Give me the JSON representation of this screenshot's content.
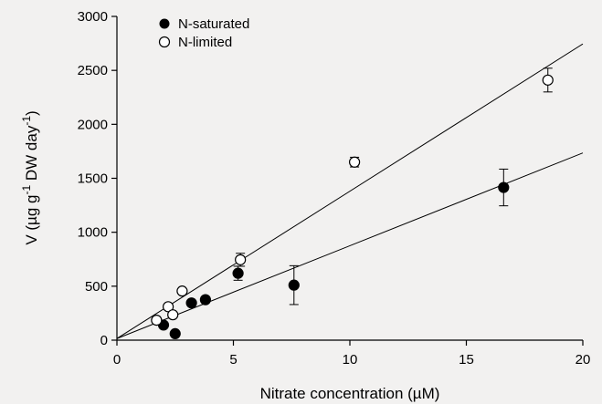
{
  "chart_data": {
    "type": "scatter",
    "xlabel": "Nitrate concentration (µM)",
    "ylabel": {
      "prefix": "V (µg g",
      "exp1": "-1",
      "mid": " DW day",
      "exp2": "-1",
      "suffix": ")"
    },
    "xlim": [
      0,
      20
    ],
    "ylim": [
      0,
      3000
    ],
    "x_ticks": [
      0,
      5,
      10,
      15,
      20
    ],
    "y_ticks": [
      0,
      500,
      1000,
      1500,
      2000,
      2500,
      3000
    ],
    "x_tick_labels": [
      "0",
      "5",
      "10",
      "15",
      "20"
    ],
    "y_tick_labels": [
      "0",
      "500",
      "1000",
      "1500",
      "2000",
      "2500",
      "3000"
    ],
    "grid": false,
    "legend_position": "top-left",
    "series": [
      {
        "name": "N-saturated",
        "marker": "filled-circle",
        "color": "#000000",
        "points": [
          {
            "x": 2.0,
            "y": 140,
            "err": 0
          },
          {
            "x": 2.5,
            "y": 60,
            "err": 0
          },
          {
            "x": 3.2,
            "y": 345,
            "err": 20
          },
          {
            "x": 3.8,
            "y": 375,
            "err": 25
          },
          {
            "x": 5.2,
            "y": 620,
            "err": 65
          },
          {
            "x": 7.6,
            "y": 510,
            "err": 180
          },
          {
            "x": 16.6,
            "y": 1415,
            "err": 170
          }
        ],
        "fit": {
          "x": [
            0,
            20
          ],
          "y": [
            15,
            1735
          ]
        }
      },
      {
        "name": "N-limited",
        "marker": "open-circle",
        "color": "#000000",
        "points": [
          {
            "x": 1.7,
            "y": 185,
            "err": 0
          },
          {
            "x": 2.2,
            "y": 310,
            "err": 0
          },
          {
            "x": 2.4,
            "y": 235,
            "err": 0
          },
          {
            "x": 2.8,
            "y": 455,
            "err": 0
          },
          {
            "x": 5.3,
            "y": 745,
            "err": 60
          },
          {
            "x": 10.2,
            "y": 1650,
            "err": 45
          },
          {
            "x": 18.5,
            "y": 2410,
            "err": 110
          }
        ],
        "fit": {
          "x": [
            0,
            20
          ],
          "y": [
            15,
            2745
          ]
        }
      }
    ]
  }
}
